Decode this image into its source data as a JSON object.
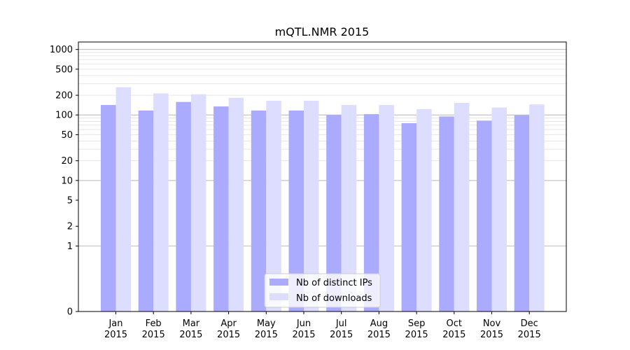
{
  "chart_data": {
    "type": "bar",
    "title": "mQTL.NMR 2015",
    "xlabel": "",
    "ylabel": "",
    "yscale": "symlog",
    "ylim": [
      0,
      1300
    ],
    "categories": [
      {
        "month": "Jan",
        "year": "2015"
      },
      {
        "month": "Feb",
        "year": "2015"
      },
      {
        "month": "Mar",
        "year": "2015"
      },
      {
        "month": "Apr",
        "year": "2015"
      },
      {
        "month": "May",
        "year": "2015"
      },
      {
        "month": "Jun",
        "year": "2015"
      },
      {
        "month": "Jul",
        "year": "2015"
      },
      {
        "month": "Aug",
        "year": "2015"
      },
      {
        "month": "Sep",
        "year": "2015"
      },
      {
        "month": "Oct",
        "year": "2015"
      },
      {
        "month": "Nov",
        "year": "2015"
      },
      {
        "month": "Dec",
        "year": "2015"
      }
    ],
    "series": [
      {
        "name": "Nb of distinct IPs",
        "color": "#aaaaff",
        "values": [
          142,
          117,
          158,
          135,
          117,
          117,
          100,
          103,
          75,
          95,
          82,
          99
        ]
      },
      {
        "name": "Nb of downloads",
        "color": "#ddddff",
        "values": [
          265,
          213,
          207,
          183,
          165,
          165,
          142,
          142,
          123,
          153,
          130,
          145
        ]
      }
    ],
    "yticks": [
      {
        "value": 0,
        "label": "0"
      },
      {
        "value": 1,
        "label": "1"
      },
      {
        "value": 2,
        "label": "2"
      },
      {
        "value": 5,
        "label": "5"
      },
      {
        "value": 10,
        "label": "10"
      },
      {
        "value": 20,
        "label": "20"
      },
      {
        "value": 50,
        "label": "50"
      },
      {
        "value": 100,
        "label": "100"
      },
      {
        "value": 200,
        "label": "200"
      },
      {
        "value": 500,
        "label": "500"
      },
      {
        "value": 1000,
        "label": "1000"
      }
    ],
    "grid": true,
    "legend_position": "bottom-center"
  }
}
